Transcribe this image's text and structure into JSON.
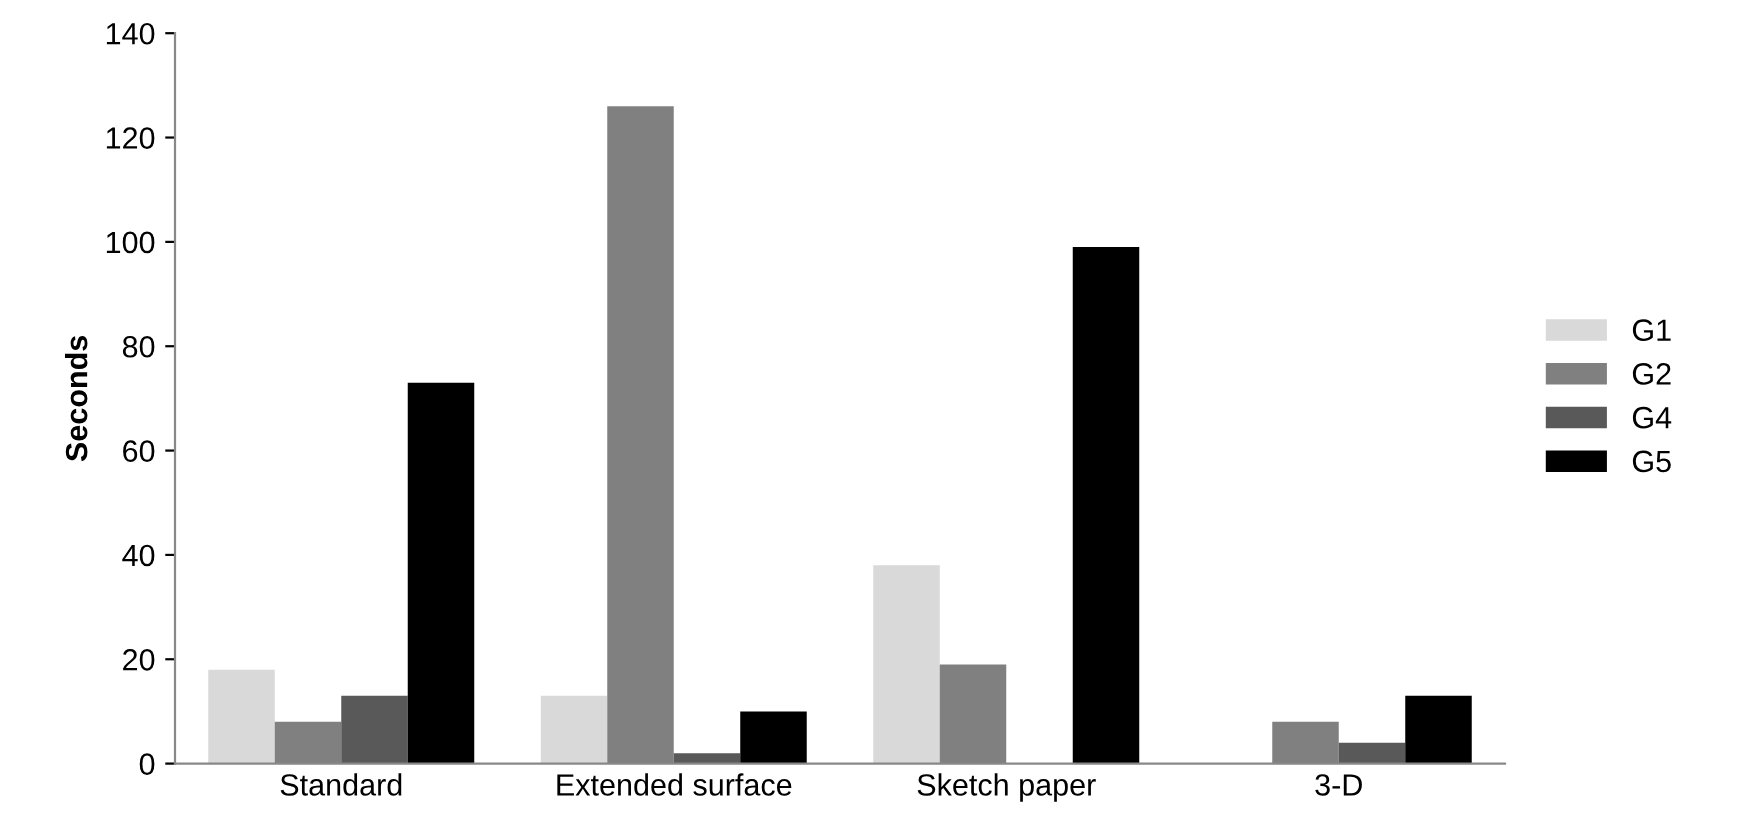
{
  "chart_data": {
    "type": "bar",
    "ylabel": "Seconds",
    "categories": [
      "Standard",
      "Extended surface",
      "Sketch paper",
      "3-D"
    ],
    "series": [
      {
        "name": "G1",
        "color": "#d9d9d9",
        "values": [
          18,
          13,
          38,
          null
        ]
      },
      {
        "name": "G2",
        "color": "#808080",
        "values": [
          8,
          126,
          19,
          8
        ]
      },
      {
        "name": "G4",
        "color": "#595959",
        "values": [
          13,
          2,
          null,
          4
        ]
      },
      {
        "name": "G5",
        "color": "#000000",
        "values": [
          73,
          10,
          99,
          13
        ]
      }
    ],
    "ylim": [
      0,
      140
    ],
    "yticks": [
      0,
      20,
      40,
      60,
      80,
      100,
      120,
      140
    ],
    "grid": false,
    "legend": "right"
  }
}
